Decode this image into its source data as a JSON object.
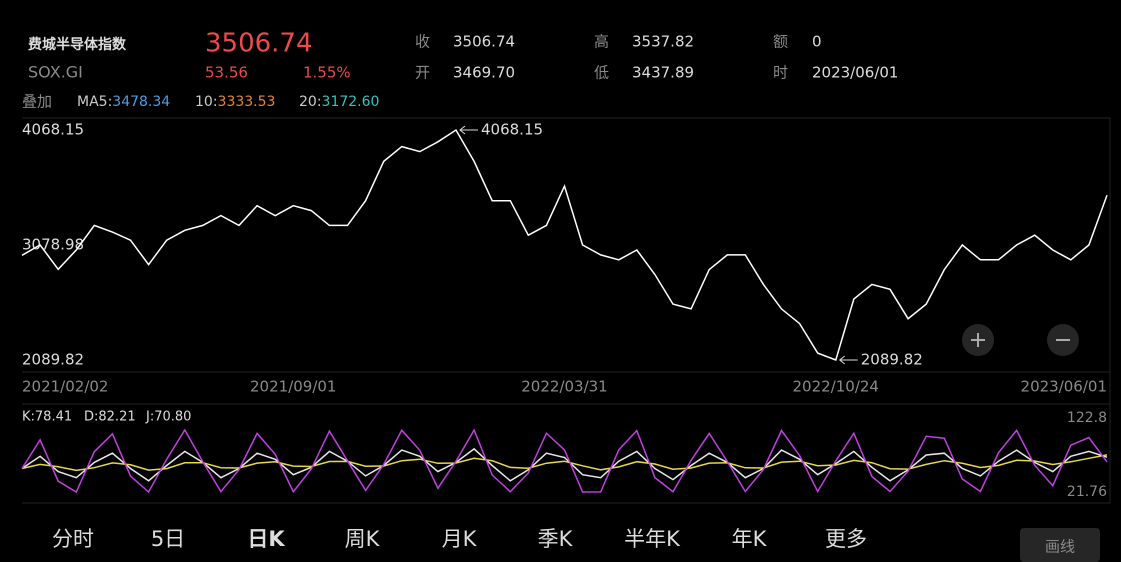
{
  "header": {
    "name": "费城半导体指数",
    "code": "SOX.GI",
    "price": "3506.74",
    "change": "53.56",
    "change_pct": "1.55%",
    "stats": [
      {
        "label": "收",
        "value": "3506.74"
      },
      {
        "label": "开",
        "value": "3469.70"
      },
      {
        "label": "高",
        "value": "3537.82"
      },
      {
        "label": "低",
        "value": "3437.89"
      },
      {
        "label": "额",
        "value": "0"
      },
      {
        "label": "时",
        "value": "2023/06/01"
      }
    ],
    "overlay": "叠加",
    "ma": [
      {
        "name": "MA5:",
        "value": "3478.34"
      },
      {
        "name": "10:",
        "value": "3333.53"
      },
      {
        "name": "20:",
        "value": "3172.60"
      }
    ]
  },
  "chart_data": [
    {
      "type": "line",
      "categories": [
        "2021/02/02",
        null,
        null,
        null,
        null,
        null,
        null,
        null,
        null,
        null,
        null,
        null,
        null,
        null,
        null,
        "2021/09/01",
        null,
        null,
        null,
        null,
        null,
        null,
        null,
        null,
        null,
        null,
        null,
        null,
        null,
        null,
        "2022/03/31",
        null,
        null,
        null,
        null,
        null,
        null,
        null,
        null,
        null,
        null,
        null,
        null,
        null,
        null,
        "2022/10/24",
        null,
        null,
        null,
        null,
        null,
        null,
        null,
        null,
        null,
        null,
        null,
        null,
        null,
        null,
        "2023/06/01"
      ],
      "series": [
        {
          "name": null,
          "color": "#ffffff",
          "values": [
            2990,
            3079,
            2870,
            3036,
            3248,
            3190,
            3120,
            2910,
            3120,
            3205,
            3248,
            3332,
            3248,
            3417,
            3332,
            3417,
            3375,
            3248,
            3248,
            3460,
            3798,
            3925,
            3882,
            3967,
            4068.15,
            3798,
            3460,
            3460,
            3163,
            3248,
            3586,
            3079,
            2994,
            2952,
            3036,
            2825,
            2571,
            2529,
            2867,
            2994,
            2994,
            2740,
            2529,
            2403,
            2149,
            2089.82,
            2614,
            2740,
            2698,
            2445,
            2571,
            2867,
            3079,
            2952,
            2952,
            3079,
            3163,
            3036,
            2952,
            3079,
            3506.74
          ]
        }
      ],
      "ylim": [
        2089.82,
        4068.15
      ],
      "yticks": [
        2089.82,
        3078.98,
        4068.15
      ],
      "annotations": [
        "4068.15",
        "2089.82"
      ],
      "grid": false
    },
    {
      "type": "line",
      "series": [
        {
          "name": "K:78.41",
          "color": "#e8e8e8",
          "values": [
            60,
            80,
            55,
            45,
            70,
            85,
            60,
            40,
            65,
            88,
            70,
            45,
            60,
            85,
            75,
            50,
            62,
            88,
            72,
            48,
            65,
            90,
            80,
            55,
            70,
            92,
            65,
            40,
            58,
            85,
            78,
            50,
            45,
            72,
            88,
            60,
            42,
            65,
            85,
            70,
            45,
            60,
            90,
            75,
            50,
            68,
            88,
            62,
            40,
            58,
            82,
            85,
            60,
            48,
            72,
            90,
            70,
            55,
            80,
            88,
            78.41
          ]
        },
        {
          "name": "D:82.21",
          "color": "#e8d84a",
          "values": [
            60,
            66.7,
            62.8,
            56.9,
            61.3,
            69.2,
            66.1,
            57.4,
            59.9,
            69.3,
            69.5,
            61.3,
            60.9,
            68.9,
            70.9,
            63.9,
            63.3,
            71.5,
            71.7,
            63.8,
            64.2,
            72.8,
            75.2,
            68.5,
            69,
            76.7,
            72.8,
            61.9,
            60.6,
            68.7,
            71.8,
            64.5,
            58,
            62.7,
            71.1,
            67.4,
            58.9,
            60.9,
            68.9,
            69.3,
            61.2,
            60.8,
            70.5,
            72,
            64.7,
            65.8,
            73.2,
            69.5,
            59.7,
            59.1,
            66.7,
            72.8,
            68.5,
            61.7,
            65.1,
            73.4,
            72.3,
            66.5,
            71,
            76.7,
            82.21
          ]
        },
        {
          "name": "J:70.80",
          "color": "#c040e0",
          "values": [
            60,
            106.6,
            39.4,
            21.76,
            87.4,
            116.6,
            47.8,
            21.76,
            75.2,
            122.8,
            71,
            22.4,
            58.2,
            117.2,
            83.2,
            22.2,
            59.4,
            121,
            72.6,
            24.4,
            66.6,
            122.4,
            89.6,
            28,
            72,
            122.6,
            49.4,
            22.2,
            52.8,
            117.6,
            90.4,
            21.8,
            22,
            90.6,
            121.8,
            45.2,
            22.2,
            73.2,
            117.2,
            71.4,
            22.6,
            58.4,
            122,
            81,
            22.6,
            72.4,
            117.6,
            47,
            22.6,
            55.8,
            112.6,
            109.4,
            43,
            22.6,
            85.8,
            122.2,
            65.4,
            32,
            98,
            110.6,
            70.8
          ]
        }
      ],
      "ylim": [
        21.76,
        122.8
      ],
      "yticks": [
        21.76,
        122.8
      ]
    }
  ],
  "tabs": [
    "分时",
    "5日",
    "日K",
    "周K",
    "月K",
    "季K",
    "半年K",
    "年K",
    "更多"
  ],
  "draw_button": "画线"
}
